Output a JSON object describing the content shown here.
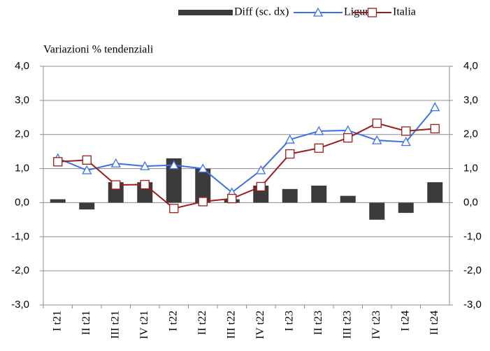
{
  "chart_data": {
    "type": "bar-line",
    "axis_title": "Variazioni % tendenziali",
    "categories": [
      "I t21",
      "II t21",
      "III t21",
      "IV t21",
      "I t22",
      "II t22",
      "III t22",
      "IV t22",
      "I t23",
      "II t23",
      "III t23",
      "IV t23",
      "I t24",
      "II t24"
    ],
    "series": [
      {
        "name": "Diff (sc. dx)",
        "type": "bar",
        "axis": "y2",
        "color": "#3b3b3b",
        "values": [
          0.1,
          -0.2,
          0.6,
          0.6,
          1.3,
          1.0,
          0.1,
          0.5,
          0.4,
          0.5,
          0.2,
          -0.5,
          -0.3,
          0.6
        ]
      },
      {
        "name": "Liguria",
        "type": "line",
        "marker": "triangle",
        "color": "#3d6fe8",
        "values": [
          1.3,
          0.95,
          1.15,
          1.07,
          1.1,
          1.0,
          0.3,
          0.95,
          1.85,
          2.1,
          2.12,
          1.83,
          1.78,
          2.8
        ]
      },
      {
        "name": "Italia",
        "type": "line",
        "marker": "square",
        "color": "#9e1b1b",
        "values": [
          1.2,
          1.25,
          0.52,
          0.53,
          -0.17,
          0.03,
          0.12,
          0.47,
          1.43,
          1.6,
          1.9,
          2.33,
          2.1,
          2.17
        ]
      }
    ],
    "ylim": [
      -3,
      4
    ],
    "yticks": [
      {
        "value": -3,
        "label": "-3,0"
      },
      {
        "value": -2,
        "label": "-2,0"
      },
      {
        "value": -1,
        "label": "-1,0"
      },
      {
        "value": 0,
        "label": "0,0"
      },
      {
        "value": 1,
        "label": "1,0"
      },
      {
        "value": 2,
        "label": "2,0"
      },
      {
        "value": 3,
        "label": "3,0"
      },
      {
        "value": 4,
        "label": "4,0"
      }
    ],
    "y2lim": [
      -3,
      4
    ],
    "y2ticks": [
      {
        "value": -3,
        "label": "-3,0"
      },
      {
        "value": -2,
        "label": "-2,0"
      },
      {
        "value": -1,
        "label": "-1,0"
      },
      {
        "value": 0,
        "label": "0,0"
      },
      {
        "value": 1,
        "label": "1,0"
      },
      {
        "value": 2,
        "label": "2,0"
      },
      {
        "value": 3,
        "label": "3,0"
      },
      {
        "value": 4,
        "label": "4,0"
      }
    ],
    "grid": true,
    "legend": "top"
  }
}
